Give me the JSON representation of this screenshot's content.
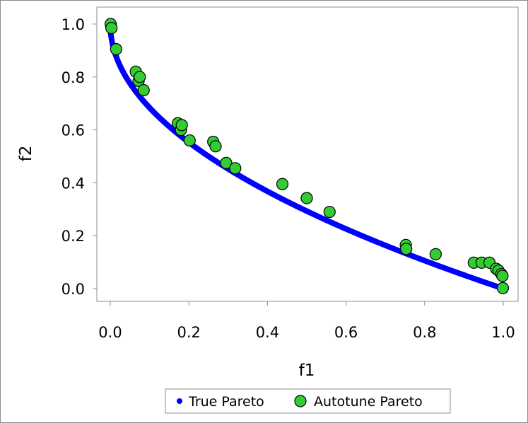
{
  "chart_data": {
    "type": "scatter",
    "xlabel": "f1",
    "ylabel": "f2",
    "xlim": [
      -0.03,
      1.03
    ],
    "ylim": [
      -0.06,
      1.04
    ],
    "xticks": [
      "0.0",
      "0.2",
      "0.4",
      "0.6",
      "0.8",
      "1.0"
    ],
    "yticks": [
      "0.0",
      "0.2",
      "0.4",
      "0.6",
      "0.8",
      "1.0"
    ],
    "grid": false,
    "legend_position": "bottom",
    "series": [
      {
        "name": "True Pareto",
        "color": "#0000ff",
        "marker": "dot",
        "curve": "f2 = 1 - sqrt(f1)",
        "x": [
          0.0,
          0.005,
          0.01,
          0.02,
          0.03,
          0.04,
          0.05,
          0.06,
          0.08,
          0.1,
          0.12,
          0.15,
          0.18,
          0.2,
          0.25,
          0.3,
          0.35,
          0.4,
          0.45,
          0.5,
          0.55,
          0.6,
          0.65,
          0.7,
          0.75,
          0.8,
          0.85,
          0.9,
          0.95,
          1.0
        ],
        "y": [
          1.0,
          0.929,
          0.9,
          0.859,
          0.827,
          0.8,
          0.776,
          0.755,
          0.717,
          0.684,
          0.654,
          0.613,
          0.576,
          0.553,
          0.5,
          0.452,
          0.408,
          0.368,
          0.329,
          0.293,
          0.258,
          0.225,
          0.194,
          0.163,
          0.134,
          0.106,
          0.078,
          0.051,
          0.025,
          0.0
        ]
      },
      {
        "name": "Autotune Pareto",
        "color": "#33cc33",
        "marker": "circle",
        "x": [
          0.001,
          0.003,
          0.015,
          0.065,
          0.072,
          0.075,
          0.085,
          0.172,
          0.18,
          0.182,
          0.202,
          0.262,
          0.268,
          0.295,
          0.318,
          0.438,
          0.5,
          0.558,
          0.752,
          0.753,
          0.828,
          0.925,
          0.945,
          0.965,
          0.982,
          0.988,
          0.995,
          0.998,
          0.999
        ],
        "y": [
          1.0,
          0.985,
          0.905,
          0.82,
          0.785,
          0.8,
          0.75,
          0.625,
          0.6,
          0.618,
          0.56,
          0.555,
          0.538,
          0.475,
          0.455,
          0.395,
          0.342,
          0.29,
          0.165,
          0.15,
          0.13,
          0.098,
          0.098,
          0.098,
          0.075,
          0.068,
          0.055,
          0.048,
          0.002
        ]
      }
    ]
  }
}
